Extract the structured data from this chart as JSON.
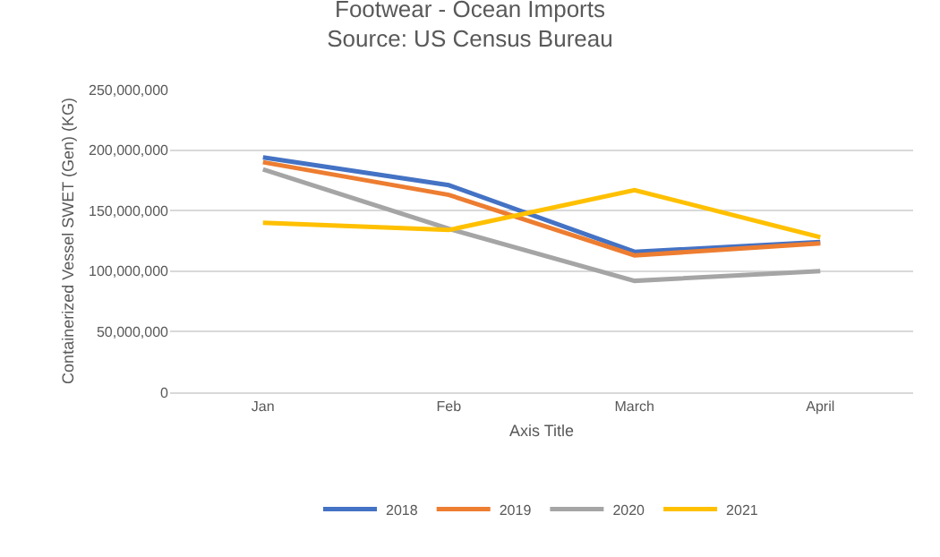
{
  "chart_data": {
    "type": "line",
    "title": "Footwear - Ocean Imports",
    "subtitle": "Source: US Census Bureau",
    "xlabel": "Axis Title",
    "ylabel": "Containerized Vessel SWET (Gen) (KG)",
    "categories": [
      "Jan",
      "Feb",
      "March",
      "April"
    ],
    "series": [
      {
        "name": "2018",
        "color": "#4472c4",
        "values": [
          194000000,
          171000000,
          116000000,
          124000000
        ]
      },
      {
        "name": "2019",
        "color": "#ed7d31",
        "values": [
          190000000,
          163000000,
          113000000,
          123000000
        ]
      },
      {
        "name": "2020",
        "color": "#a5a5a5",
        "values": [
          184000000,
          135000000,
          92000000,
          100000000
        ]
      },
      {
        "name": "2021",
        "color": "#ffc000",
        "values": [
          140000000,
          134000000,
          167000000,
          128000000
        ]
      }
    ],
    "ylim": [
      0,
      250000000
    ],
    "yticks": [
      {
        "value": 0,
        "label": "0"
      },
      {
        "value": 50000000,
        "label": "50,000,000"
      },
      {
        "value": 100000000,
        "label": "100,000,000"
      },
      {
        "value": 150000000,
        "label": "150,000,000"
      },
      {
        "value": 200000000,
        "label": "200,000,000"
      },
      {
        "value": 250000000,
        "label": "250,000,000"
      }
    ],
    "grid": "y",
    "legend": "bottom",
    "marker": "none",
    "line_style": "solid"
  }
}
